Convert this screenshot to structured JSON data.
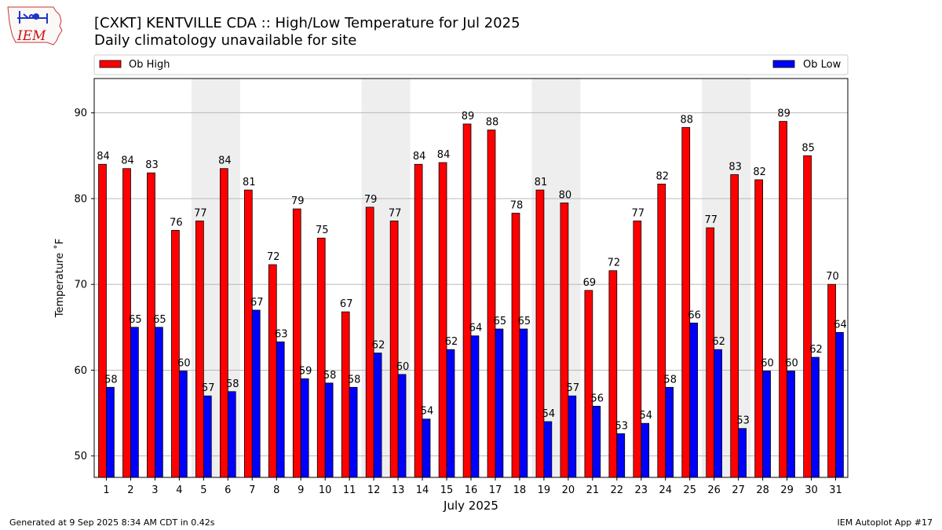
{
  "logo": {
    "text": "IEM"
  },
  "footer": {
    "left": "Generated at 9 Sep 2025 8:34 AM CDT in 0.42s",
    "right": "IEM Autoplot App #17"
  },
  "colors": {
    "high": "#ff0000",
    "low": "#0000ff",
    "weekend_band": "#eeeeee",
    "grid": "#b0b0b0"
  },
  "chart_data": {
    "type": "bar",
    "title": "[CXKT] KENTVILLE CDA :: High/Low Temperature for Jul 2025",
    "subtitle": "Daily climatology unavailable for site",
    "xlabel": "July 2025",
    "ylabel": "Temperature ˚F",
    "ylim": [
      47.5,
      94
    ],
    "yticks": [
      50,
      60,
      70,
      80,
      90
    ],
    "grid": true,
    "legend": {
      "left": "Ob High",
      "right": "Ob Low",
      "placement": "top"
    },
    "categories": [
      "1",
      "2",
      "3",
      "4",
      "5",
      "6",
      "7",
      "8",
      "9",
      "10",
      "11",
      "12",
      "13",
      "14",
      "15",
      "16",
      "17",
      "18",
      "19",
      "20",
      "21",
      "22",
      "23",
      "24",
      "25",
      "26",
      "27",
      "28",
      "29",
      "30",
      "31"
    ],
    "shaded_days": [
      [
        5,
        6
      ],
      [
        12,
        13
      ],
      [
        19,
        20
      ],
      [
        26,
        27
      ]
    ],
    "series": [
      {
        "name": "Ob High",
        "values": [
          84,
          83.5,
          83,
          76.3,
          77.4,
          83.5,
          81,
          72.3,
          78.8,
          75.4,
          66.8,
          79,
          77.4,
          84,
          84.2,
          88.7,
          88,
          78.3,
          81,
          79.5,
          69.3,
          71.6,
          77.4,
          81.7,
          88.3,
          76.6,
          82.8,
          82.2,
          89,
          85,
          70
        ],
        "labels": [
          "84",
          "84",
          "83",
          "76",
          "77",
          "84",
          "81",
          "72",
          "79",
          "75",
          "67",
          "79",
          "77",
          "84",
          "84",
          "89",
          "88",
          "78",
          "81",
          "80",
          "69",
          "72",
          "77",
          "82",
          "88",
          "77",
          "83",
          "82",
          "89",
          "85",
          "70"
        ]
      },
      {
        "name": "Ob Low",
        "values": [
          58,
          65,
          65,
          59.9,
          57,
          57.5,
          67,
          63.3,
          59,
          58.5,
          58,
          62,
          59.5,
          54.3,
          62.4,
          64,
          64.8,
          64.8,
          54,
          57,
          55.8,
          52.6,
          53.8,
          58,
          65.5,
          62.4,
          53.2,
          59.9,
          59.9,
          61.5,
          64.4
        ],
        "labels": [
          "58",
          "65",
          "65",
          "60",
          "57",
          "58",
          "67",
          "63",
          "59",
          "58",
          "58",
          "62",
          "60",
          "54",
          "62",
          "64",
          "65",
          "65",
          "54",
          "57",
          "56",
          "53",
          "54",
          "58",
          "66",
          "62",
          "53",
          "60",
          "60",
          "62",
          "64"
        ]
      }
    ]
  }
}
